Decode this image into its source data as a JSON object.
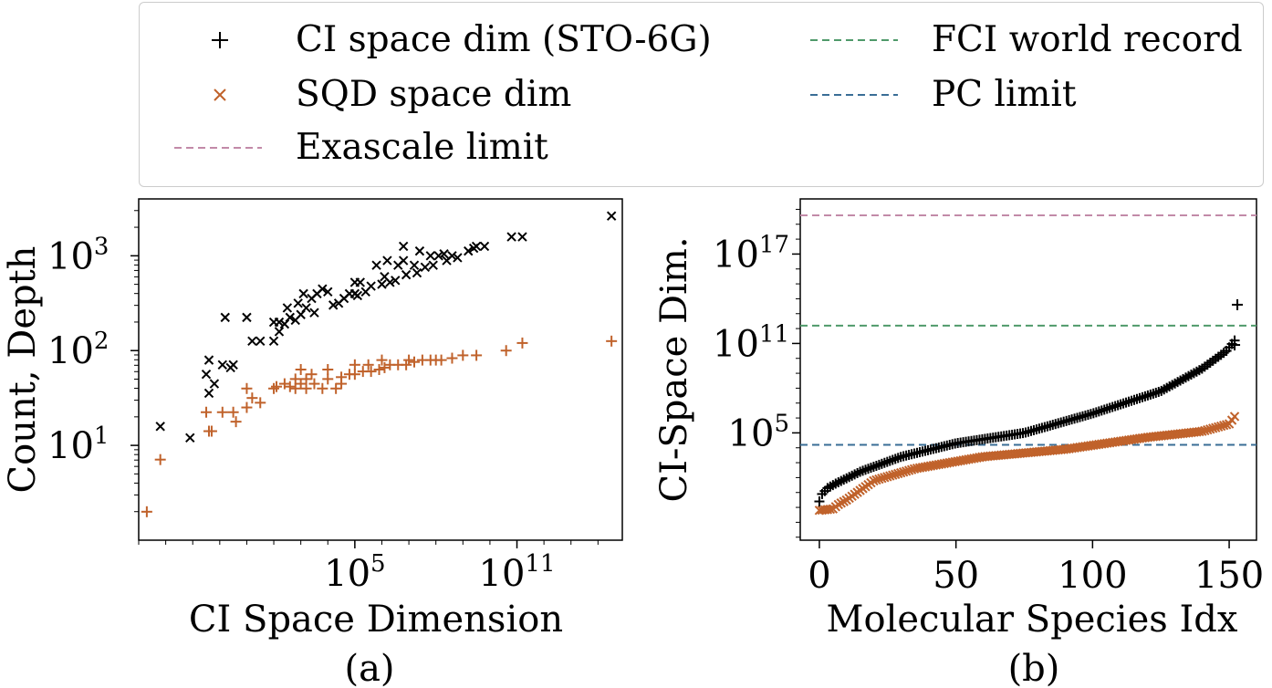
{
  "legend": {
    "ci": "CI space dim (STO-6G)",
    "sqd": "SQD space dim",
    "exa": "Exascale limit",
    "fci": "FCI world record",
    "pc": "PC limit"
  },
  "colors": {
    "ci": "#000000",
    "sqd": "#c0622b",
    "exascale": "#c28aa8",
    "fci": "#4f9a6a",
    "pc": "#3a6e96"
  },
  "chart_data": [
    {
      "type": "scatter",
      "panel_label": "(a)",
      "xlabel": "CI Space Dimension",
      "ylabel": "Count, Depth",
      "x_scale": "log10",
      "y_scale": "log10",
      "xlim_log10": [
        -3.0,
        14.9
      ],
      "ylim_log10": [
        0.0,
        3.6
      ],
      "x_ticks": [
        {
          "base": "10",
          "exp": "5",
          "log10": 5
        },
        {
          "base": "10",
          "exp": "11",
          "log10": 11
        }
      ],
      "y_ticks": [
        {
          "base": "10",
          "exp": "1",
          "log10": 1
        },
        {
          "base": "10",
          "exp": "2",
          "log10": 2
        },
        {
          "base": "10",
          "exp": "3",
          "log10": 3
        }
      ],
      "series": [
        {
          "name": "Count",
          "marker": "x",
          "points_log10": [
            [
              -1.1,
              1.08
            ],
            [
              -2.2,
              1.2
            ],
            [
              -0.4,
              1.55
            ],
            [
              -0.2,
              1.65
            ],
            [
              -0.4,
              1.9
            ],
            [
              0.1,
              1.85
            ],
            [
              -0.5,
              1.75
            ],
            [
              0.4,
              1.82
            ],
            [
              0.5,
              1.85
            ],
            [
              0.2,
              2.35
            ],
            [
              1.2,
              2.1
            ],
            [
              1.5,
              2.1
            ],
            [
              1.0,
              2.35
            ],
            [
              2.0,
              2.3
            ],
            [
              2.2,
              2.3
            ],
            [
              2.4,
              2.28
            ],
            [
              2.6,
              2.35
            ],
            [
              2.8,
              2.32
            ],
            [
              3.0,
              2.38
            ],
            [
              3.2,
              2.45
            ],
            [
              3.5,
              2.4
            ],
            [
              2.5,
              2.45
            ],
            [
              3.1,
              2.6
            ],
            [
              4.2,
              2.48
            ],
            [
              4.6,
              2.55
            ],
            [
              5.0,
              2.6
            ],
            [
              5.4,
              2.62
            ],
            [
              5.6,
              2.68
            ],
            [
              6.0,
              2.7
            ],
            [
              6.3,
              2.72
            ],
            [
              6.5,
              2.74
            ],
            [
              6.9,
              2.8
            ],
            [
              7.3,
              2.82
            ],
            [
              7.6,
              2.88
            ],
            [
              7.9,
              2.9
            ],
            [
              8.4,
              2.95
            ],
            [
              8.8,
              2.98
            ],
            [
              9.2,
              3.05
            ],
            [
              9.5,
              3.1
            ],
            [
              9.8,
              3.1
            ],
            [
              5.2,
              2.72
            ],
            [
              6.1,
              2.78
            ],
            [
              7.2,
              2.9
            ],
            [
              5.8,
              2.9
            ],
            [
              5.0,
              2.72
            ],
            [
              6.8,
              2.95
            ],
            [
              7.8,
              3.0
            ],
            [
              8.3,
              3.02
            ],
            [
              3.8,
              2.65
            ],
            [
              4.4,
              2.5
            ],
            [
              3.4,
              2.55
            ],
            [
              2.9,
              2.5
            ],
            [
              5.1,
              2.58
            ],
            [
              6.6,
              2.9
            ],
            [
              4.0,
              2.62
            ],
            [
              3.6,
              2.6
            ],
            [
              2.2,
              2.2
            ],
            [
              2.0,
              2.1
            ],
            [
              10.8,
              3.2
            ],
            [
              11.2,
              3.2
            ],
            [
              14.5,
              3.42
            ],
            [
              8.1,
              3.0
            ],
            [
              9.4,
              3.08
            ],
            [
              6.8,
              3.1
            ],
            [
              6.2,
              2.95
            ],
            [
              7.4,
              3.05
            ],
            [
              8.6,
              3.0
            ],
            [
              4.8,
              2.6
            ]
          ]
        },
        {
          "name": "Depth",
          "marker": "+",
          "points_log10": [
            [
              -2.7,
              0.3
            ],
            [
              -2.2,
              0.85
            ],
            [
              -0.4,
              1.15
            ],
            [
              -0.3,
              1.15
            ],
            [
              -0.5,
              1.35
            ],
            [
              0.1,
              1.35
            ],
            [
              0.5,
              1.35
            ],
            [
              0.6,
              1.25
            ],
            [
              1.0,
              1.4
            ],
            [
              1.2,
              1.5
            ],
            [
              1.5,
              1.45
            ],
            [
              1.0,
              1.6
            ],
            [
              2.0,
              1.6
            ],
            [
              2.1,
              1.62
            ],
            [
              2.4,
              1.65
            ],
            [
              2.6,
              1.62
            ],
            [
              2.8,
              1.6
            ],
            [
              3.0,
              1.65
            ],
            [
              3.2,
              1.7
            ],
            [
              3.5,
              1.65
            ],
            [
              3.8,
              1.6
            ],
            [
              4.0,
              1.7
            ],
            [
              4.3,
              1.6
            ],
            [
              4.5,
              1.72
            ],
            [
              4.8,
              1.75
            ],
            [
              5.0,
              1.75
            ],
            [
              5.3,
              1.78
            ],
            [
              5.6,
              1.78
            ],
            [
              5.9,
              1.8
            ],
            [
              6.1,
              1.82
            ],
            [
              6.3,
              1.85
            ],
            [
              6.6,
              1.85
            ],
            [
              6.9,
              1.85
            ],
            [
              7.2,
              1.88
            ],
            [
              7.5,
              1.9
            ],
            [
              7.8,
              1.9
            ],
            [
              8.2,
              1.9
            ],
            [
              8.6,
              1.92
            ],
            [
              9.0,
              1.95
            ],
            [
              9.5,
              1.95
            ],
            [
              10.6,
              2.0
            ],
            [
              11.2,
              2.08
            ],
            [
              14.5,
              2.1
            ],
            [
              3.0,
              1.8
            ],
            [
              3.4,
              1.75
            ],
            [
              5.0,
              1.85
            ],
            [
              6.0,
              1.9
            ],
            [
              7.0,
              1.9
            ],
            [
              8.0,
              1.9
            ],
            [
              4.0,
              1.8
            ],
            [
              5.5,
              1.85
            ],
            [
              4.5,
              1.65
            ],
            [
              3.2,
              1.6
            ],
            [
              2.8,
              1.7
            ]
          ]
        }
      ]
    },
    {
      "type": "scatter",
      "panel_label": "(b)",
      "xlabel": "Molecular Species Idx",
      "ylabel": "CI-Space Dim.",
      "y_scale": "log10",
      "xlim": [
        -7,
        160
      ],
      "ylim_log10": [
        -2.2,
        20.7
      ],
      "x_ticks": [
        0,
        50,
        100,
        150
      ],
      "y_ticks": [
        {
          "base": "10",
          "exp": "5",
          "log10": 5
        },
        {
          "base": "10",
          "exp": "11",
          "log10": 11
        },
        {
          "base": "10",
          "exp": "17",
          "log10": 17
        }
      ],
      "hlines_log10": [
        {
          "name": "Exascale limit",
          "value": 19.6
        },
        {
          "name": "FCI world record",
          "value": 12.2
        },
        {
          "name": "PC limit",
          "value": 4.2
        }
      ],
      "series": [
        {
          "name": "CI space dim (STO-6G)",
          "marker": "+",
          "curve_log10": [
            [
              0,
              0.4
            ],
            [
              1,
              0.9
            ],
            [
              3,
              1.3
            ],
            [
              6,
              1.6
            ],
            [
              15,
              2.4
            ],
            [
              30,
              3.4
            ],
            [
              50,
              4.3
            ],
            [
              75,
              5.0
            ],
            [
              100,
              6.3
            ],
            [
              125,
              7.8
            ],
            [
              140,
              9.3
            ],
            [
              149,
              10.5
            ],
            [
              152,
              11.2
            ]
          ],
          "extra_points_log10": [
            [
              153,
              13.6
            ],
            [
              152,
              10.9
            ]
          ]
        },
        {
          "name": "SQD space dim",
          "marker": "x",
          "curve_log10": [
            [
              0,
              -0.2
            ],
            [
              5,
              -0.1
            ],
            [
              7,
              0.2
            ],
            [
              10,
              0.5
            ],
            [
              20,
              1.8
            ],
            [
              35,
              2.6
            ],
            [
              60,
              3.4
            ],
            [
              90,
              3.9
            ],
            [
              120,
              4.7
            ],
            [
              140,
              5.1
            ],
            [
              150,
              5.6
            ],
            [
              152,
              6.1
            ]
          ]
        }
      ]
    }
  ]
}
